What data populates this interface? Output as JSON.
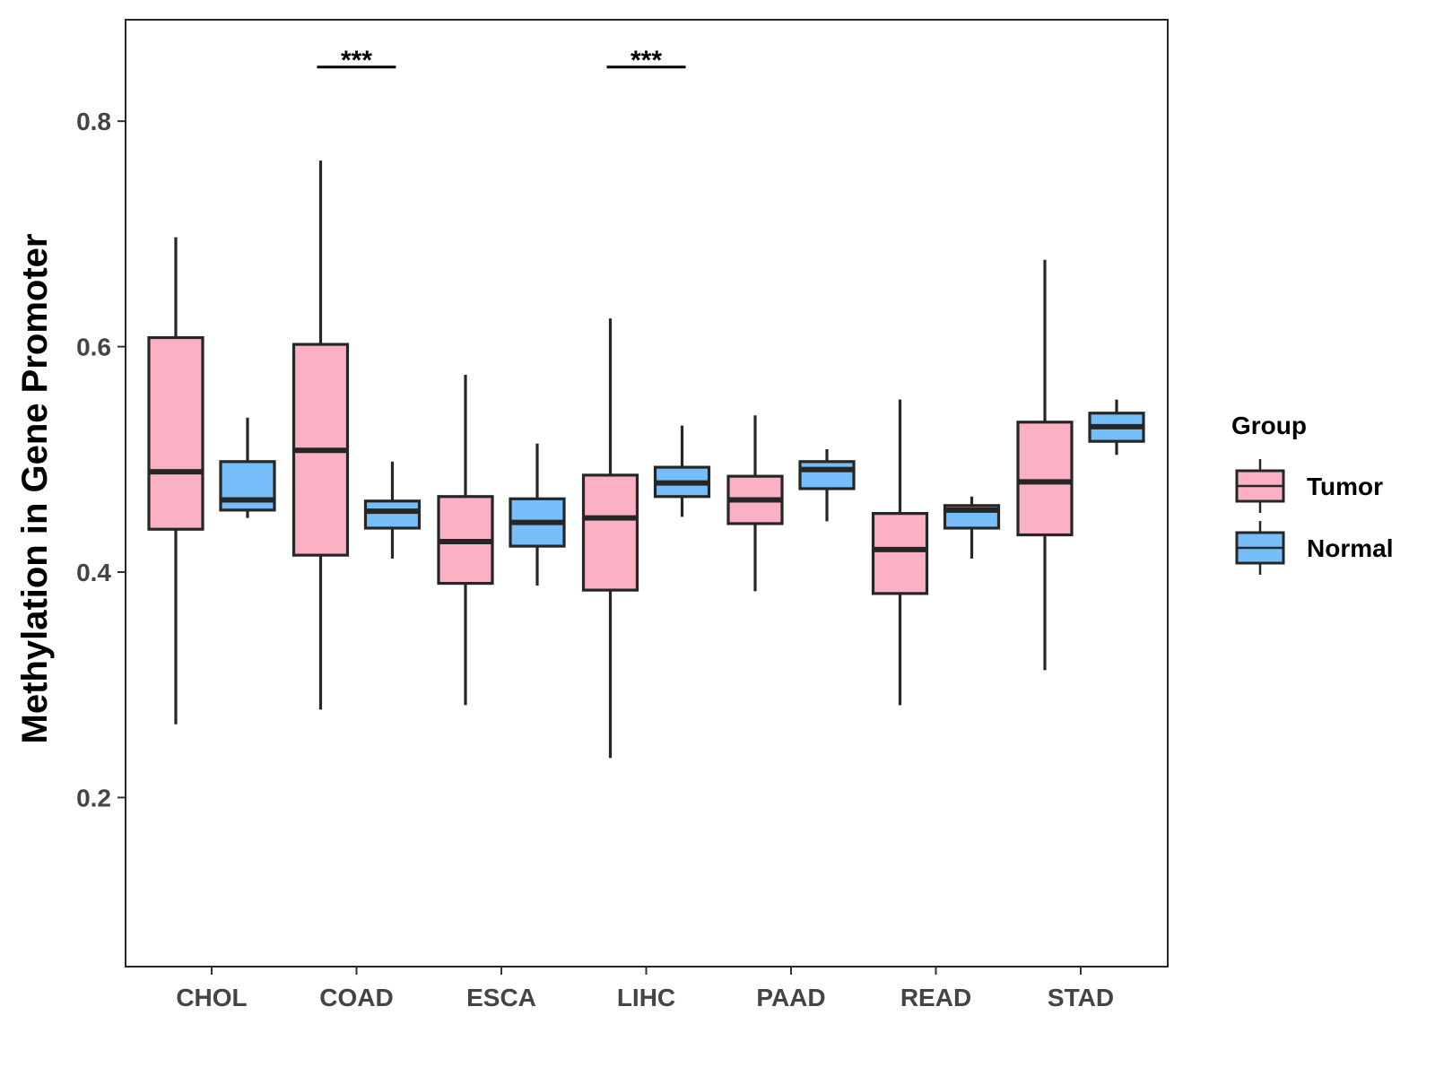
{
  "chart_data": {
    "type": "boxplot",
    "title": "",
    "xlabel": "",
    "ylabel": "Methylation in Gene Promoter",
    "ylim": [
      0.05,
      0.89
    ],
    "y_ticks": [
      0.2,
      0.4,
      0.6,
      0.8
    ],
    "y_tick_labels": [
      "0.2",
      "0.4",
      "0.6",
      "0.8"
    ],
    "categories": [
      "CHOL",
      "COAD",
      "ESCA",
      "LIHC",
      "PAAD",
      "READ",
      "STAD"
    ],
    "legend": {
      "title": "Group",
      "position": "right",
      "entries": [
        {
          "name": "Tumor",
          "color": "#fbb1c3"
        },
        {
          "name": "Normal",
          "color": "#76befa"
        }
      ]
    },
    "series": [
      {
        "name": "Tumor",
        "color": "#fbb1c3",
        "boxes": [
          {
            "min": 0.265,
            "q1": 0.438,
            "median": 0.489,
            "q3": 0.608,
            "max": 0.697
          },
          {
            "min": 0.278,
            "q1": 0.415,
            "median": 0.508,
            "q3": 0.602,
            "max": 0.765
          },
          {
            "min": 0.282,
            "q1": 0.39,
            "median": 0.427,
            "q3": 0.467,
            "max": 0.575
          },
          {
            "min": 0.235,
            "q1": 0.384,
            "median": 0.448,
            "q3": 0.486,
            "max": 0.625
          },
          {
            "min": 0.383,
            "q1": 0.443,
            "median": 0.464,
            "q3": 0.485,
            "max": 0.539
          },
          {
            "min": 0.282,
            "q1": 0.381,
            "median": 0.42,
            "q3": 0.452,
            "max": 0.553
          },
          {
            "min": 0.313,
            "q1": 0.433,
            "median": 0.48,
            "q3": 0.533,
            "max": 0.677
          }
        ]
      },
      {
        "name": "Normal",
        "color": "#76befa",
        "boxes": [
          {
            "min": 0.448,
            "q1": 0.455,
            "median": 0.464,
            "q3": 0.498,
            "max": 0.537
          },
          {
            "min": 0.412,
            "q1": 0.439,
            "median": 0.454,
            "q3": 0.463,
            "max": 0.498
          },
          {
            "min": 0.388,
            "q1": 0.423,
            "median": 0.444,
            "q3": 0.465,
            "max": 0.514
          },
          {
            "min": 0.449,
            "q1": 0.467,
            "median": 0.479,
            "q3": 0.493,
            "max": 0.53
          },
          {
            "min": 0.445,
            "q1": 0.474,
            "median": 0.491,
            "q3": 0.498,
            "max": 0.509
          },
          {
            "min": 0.412,
            "q1": 0.439,
            "median": 0.455,
            "q3": 0.459,
            "max": 0.467
          },
          {
            "min": 0.504,
            "q1": 0.516,
            "median": 0.529,
            "q3": 0.541,
            "max": 0.553
          }
        ]
      }
    ],
    "annotations": [
      {
        "category": "COAD",
        "text": "***",
        "y": 0.848
      },
      {
        "category": "LIHC",
        "text": "***",
        "y": 0.848
      }
    ]
  }
}
